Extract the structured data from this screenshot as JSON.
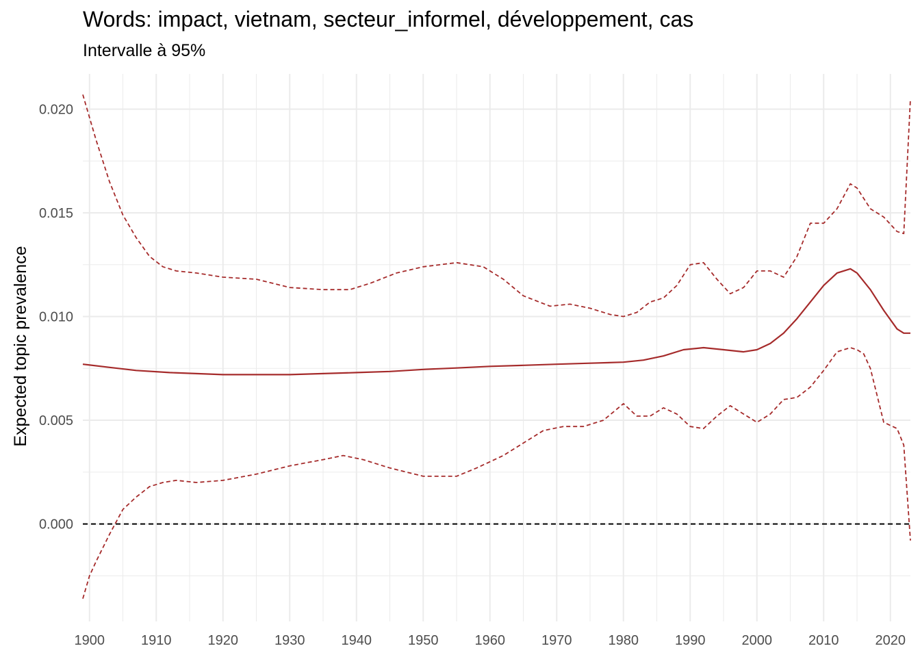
{
  "chart_data": {
    "type": "line",
    "title": "Words: impact, vietnam, secteur_informel, développement, cas",
    "subtitle": "Intervalle à 95%",
    "xlabel": "",
    "ylabel": "Expected topic prevalence",
    "xlim": [
      1899,
      2023
    ],
    "ylim": [
      -0.0047,
      0.0217
    ],
    "x_ticks": [
      1900,
      1910,
      1920,
      1930,
      1940,
      1950,
      1960,
      1970,
      1980,
      1990,
      2000,
      2010,
      2020
    ],
    "y_ticks": [
      0.0,
      0.005,
      0.01,
      0.015,
      0.02
    ],
    "y_tick_labels": [
      "0.000",
      "0.005",
      "0.010",
      "0.015",
      "0.020"
    ],
    "grid": true,
    "reference_line": {
      "y": 0,
      "style": "dashed",
      "color": "#000000"
    },
    "colors": {
      "series": "#A52A2A",
      "grid": "#EBEBEB",
      "text": "#4D4D4D"
    },
    "series": [
      {
        "role": "estimate",
        "style": "solid",
        "x": [
          1899,
          1903,
          1907,
          1912,
          1916,
          1920,
          1925,
          1930,
          1935,
          1940,
          1945,
          1950,
          1955,
          1960,
          1965,
          1970,
          1975,
          1980,
          1983,
          1986,
          1989,
          1992,
          1995,
          1998,
          2000,
          2002,
          2004,
          2006,
          2008,
          2010,
          2012,
          2014,
          2015,
          2017,
          2019,
          2021,
          2022,
          2023
        ],
        "y": [
          0.0077,
          0.00755,
          0.0074,
          0.0073,
          0.00725,
          0.0072,
          0.0072,
          0.0072,
          0.00725,
          0.0073,
          0.00735,
          0.00745,
          0.00752,
          0.0076,
          0.00765,
          0.0077,
          0.00775,
          0.0078,
          0.0079,
          0.0081,
          0.0084,
          0.0085,
          0.0084,
          0.0083,
          0.0084,
          0.0087,
          0.0092,
          0.0099,
          0.0107,
          0.0115,
          0.0121,
          0.0123,
          0.0121,
          0.0113,
          0.0103,
          0.0094,
          0.0092,
          0.0092
        ]
      },
      {
        "role": "upper_95",
        "style": "dashed",
        "x": [
          1899,
          1901,
          1903,
          1905,
          1907,
          1909,
          1911,
          1913,
          1916,
          1920,
          1925,
          1930,
          1935,
          1939,
          1942,
          1946,
          1950,
          1955,
          1959,
          1962,
          1965,
          1969,
          1972,
          1975,
          1978,
          1980,
          1982,
          1984,
          1986,
          1988,
          1990,
          1992,
          1994,
          1996,
          1998,
          2000,
          2002,
          2004,
          2006,
          2008,
          2010,
          2012,
          2014,
          2015,
          2017,
          2019,
          2021,
          2022,
          2023
        ],
        "y": [
          0.0207,
          0.0185,
          0.0165,
          0.0149,
          0.0138,
          0.0129,
          0.0124,
          0.0122,
          0.0121,
          0.0119,
          0.0118,
          0.0114,
          0.0113,
          0.0113,
          0.0116,
          0.0121,
          0.0124,
          0.0126,
          0.0124,
          0.0118,
          0.011,
          0.0105,
          0.0106,
          0.0104,
          0.0101,
          0.01,
          0.0102,
          0.0107,
          0.0109,
          0.0115,
          0.0125,
          0.0126,
          0.0118,
          0.0111,
          0.0114,
          0.0122,
          0.0122,
          0.0119,
          0.0129,
          0.0145,
          0.0145,
          0.0152,
          0.0164,
          0.0162,
          0.0152,
          0.0148,
          0.0141,
          0.014,
          0.0205
        ]
      },
      {
        "role": "lower_95",
        "style": "dashed",
        "x": [
          1899,
          1900,
          1901,
          1903,
          1905,
          1907,
          1909,
          1911,
          1913,
          1916,
          1920,
          1925,
          1930,
          1935,
          1938,
          1941,
          1945,
          1950,
          1955,
          1958,
          1962,
          1965,
          1968,
          1971,
          1974,
          1977,
          1980,
          1982,
          1984,
          1986,
          1988,
          1990,
          1992,
          1994,
          1996,
          1998,
          2000,
          2002,
          2004,
          2006,
          2008,
          2010,
          2012,
          2014,
          2015,
          2016,
          2017,
          2018,
          2019,
          2021,
          2022,
          2023
        ],
        "y": [
          -0.0036,
          -0.0025,
          -0.0018,
          -0.0005,
          0.0007,
          0.0013,
          0.0018,
          0.002,
          0.0021,
          0.002,
          0.0021,
          0.0024,
          0.0028,
          0.0031,
          0.0033,
          0.0031,
          0.0027,
          0.0023,
          0.0023,
          0.0027,
          0.0033,
          0.0039,
          0.0045,
          0.0047,
          0.0047,
          0.005,
          0.0058,
          0.0052,
          0.0052,
          0.0056,
          0.0053,
          0.0047,
          0.0046,
          0.0052,
          0.0057,
          0.0053,
          0.0049,
          0.0053,
          0.006,
          0.0061,
          0.0066,
          0.0074,
          0.0083,
          0.0085,
          0.0084,
          0.0082,
          0.0075,
          0.0062,
          0.0049,
          0.0046,
          0.0038,
          -0.0008
        ]
      }
    ]
  }
}
